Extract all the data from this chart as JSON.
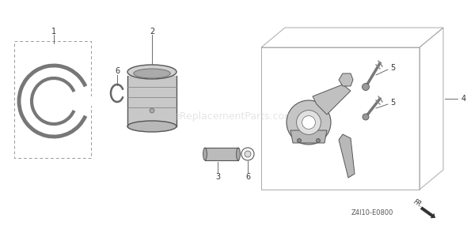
{
  "bg_color": "#ffffff",
  "watermark": "eReplacementParts.com",
  "diagram_code": "Z4I10-E0800",
  "text_color": "#333333",
  "line_color": "#555555",
  "part_color": "#888888",
  "part_light": "#cccccc",
  "part_dark": "#666666"
}
